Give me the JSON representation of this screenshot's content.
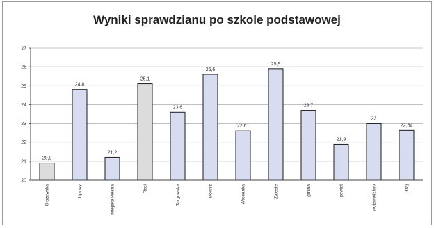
{
  "chart_data": {
    "type": "bar",
    "title": "Wyniki sprawdzianu po szkole podstawowej",
    "xlabel": "",
    "ylabel": "",
    "ylim": [
      20,
      27
    ],
    "yticks": [
      20,
      21,
      22,
      23,
      24,
      25,
      26,
      27
    ],
    "grid": true,
    "legend": "none",
    "categories": [
      "Olszewska",
      "Lipowy",
      "Miejska Piekna",
      "Rogi",
      "Targowska",
      "Mowsz",
      "Wrocanka",
      "Zalesie",
      "gmina",
      "powiat",
      "województwo",
      "kraj"
    ],
    "values": [
      20.9,
      24.8,
      21.2,
      25.1,
      23.6,
      25.6,
      22.61,
      25.9,
      23.7,
      21.9,
      23,
      22.64
    ],
    "value_labels": [
      "20,9",
      "24,8",
      "21,2",
      "25,1",
      "23,6",
      "25,6",
      "22,61",
      "25,9",
      "23,7",
      "21,9",
      "23",
      "22,64"
    ],
    "colors": {
      "highlight_bars": "#dcdcdc",
      "normal_bars": "#d8dcf0",
      "bar_outline": "#1a1a1a",
      "grid": "#b4b4b4"
    },
    "highlight_indices": [
      0,
      3
    ]
  }
}
